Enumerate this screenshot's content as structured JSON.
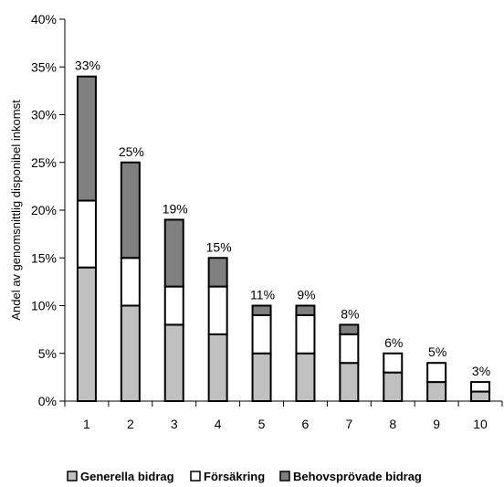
{
  "chart_data": {
    "type": "bar",
    "stacked": true,
    "categories": [
      "1",
      "2",
      "3",
      "4",
      "5",
      "6",
      "7",
      "8",
      "9",
      "10"
    ],
    "series": [
      {
        "name": "Generella bidrag",
        "values": [
          14,
          10,
          8,
          7,
          5,
          5,
          4,
          3,
          2,
          1
        ],
        "color": "#c0c0c0"
      },
      {
        "name": "Försäkring",
        "values": [
          7,
          5,
          4,
          5,
          4,
          4,
          3,
          2,
          2,
          1
        ],
        "color": "#ffffff"
      },
      {
        "name": "Behovsprövade bidrag",
        "values": [
          13,
          10,
          7,
          3,
          1,
          1,
          1,
          0,
          0,
          0
        ],
        "color": "#808080"
      }
    ],
    "totals_labels": [
      "33%",
      "25%",
      "19%",
      "15%",
      "11%",
      "9%",
      "8%",
      "6%",
      "5%",
      "3%"
    ],
    "ylabel": "Andel av genomsnittlig disponibel inkomst",
    "ylim": [
      0,
      40
    ],
    "yticks": [
      0,
      5,
      10,
      15,
      20,
      25,
      30,
      35,
      40
    ],
    "ytick_labels": [
      "0%",
      "5%",
      "10%",
      "15%",
      "20%",
      "25%",
      "30%",
      "35%",
      "40%"
    ],
    "grid": false,
    "legend_position": "bottom"
  }
}
